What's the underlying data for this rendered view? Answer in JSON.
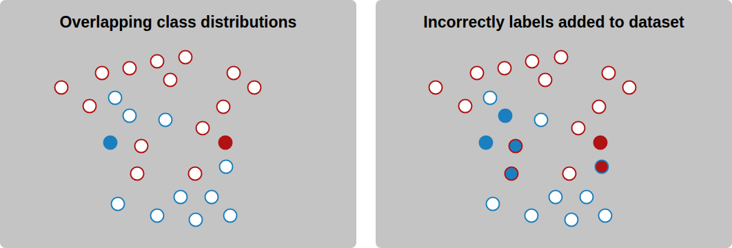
{
  "chart_data": [
    {
      "type": "scatter",
      "title": "Overlapping class distributions",
      "tick_labels": false,
      "grid": false,
      "xlim": [
        0,
        517
      ],
      "ylim": [
        0,
        360
      ],
      "series": [
        {
          "color": "#b11212",
          "marker": "open",
          "x": [
            89,
            148,
            188,
            228,
            269,
            339,
            369,
            247,
            130,
            324,
            294,
            205,
            199,
            283
          ],
          "values": [
            233,
            254,
            261,
            271,
            277,
            254,
            233,
            244,
            206,
            205,
            174,
            148,
            108,
            108
          ]
        },
        {
          "color": "#1b7fbf",
          "marker": "open",
          "x": [
            167,
            188,
            240,
            328,
            171,
            228,
            262,
            307,
            284,
            334
          ],
          "values": [
            218,
            192,
            186,
            118,
            64,
            47,
            74,
            74,
            41,
            47
          ]
        },
        {
          "color": "#1b7fbf",
          "marker": "solid",
          "x": [
            160
          ],
          "values": [
            153
          ]
        },
        {
          "color": "#b11212",
          "marker": "solid",
          "x": [
            327
          ],
          "values": [
            153
          ]
        }
      ]
    },
    {
      "type": "scatter",
      "title": "Incorrectly labels added to dataset",
      "tick_labels": false,
      "grid": false,
      "xlim": [
        0,
        517
      ],
      "ylim": [
        0,
        360
      ],
      "series": [
        {
          "color": "#b11212",
          "marker": "open",
          "x": [
            87,
            147,
            187,
            227,
            269,
            338,
            368,
            246,
            130,
            324,
            294,
            281
          ],
          "values": [
            233,
            254,
            261,
            271,
            277,
            254,
            233,
            244,
            206,
            205,
            174,
            108
          ]
        },
        {
          "color": "#1b7fbf",
          "marker": "open",
          "x": [
            166,
            240,
            170,
            226,
            261,
            306,
            284,
            333
          ],
          "values": [
            218,
            186,
            64,
            47,
            74,
            74,
            41,
            47
          ]
        },
        {
          "color": "#1b7fbf",
          "marker": "solid",
          "x": [
            188,
            160
          ],
          "values": [
            192,
            153
          ]
        },
        {
          "color": "#b11212",
          "marker": "solid",
          "x": [
            326
          ],
          "values": [
            153
          ]
        },
        {
          "color": "#1b7fbf",
          "marker": "ringed",
          "x": [
            203,
            197
          ],
          "values": [
            148,
            108
          ]
        },
        {
          "color": "#b11212",
          "marker": "ringed",
          "x": [
            328
          ],
          "values": [
            118
          ]
        }
      ]
    }
  ]
}
